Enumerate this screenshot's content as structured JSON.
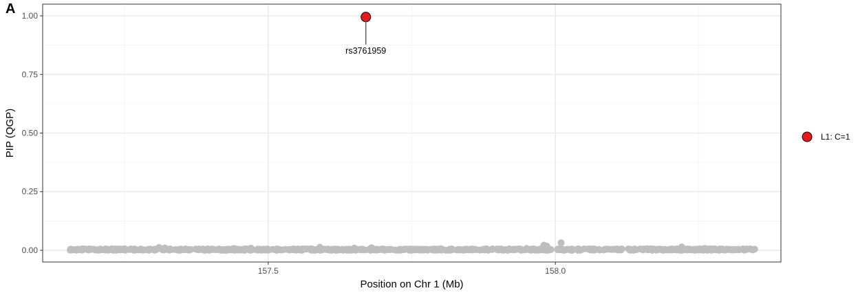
{
  "panel_label": "A",
  "chart_data": {
    "type": "scatter",
    "xlabel": "Position on Chr 1 (Mb)",
    "ylabel": "PIP (QGP)",
    "xlim": [
      157.1073,
      158.3927
    ],
    "ylim": [
      -0.05,
      1.05
    ],
    "x_ticks": [
      157.5,
      158.0
    ],
    "x_tick_labels": [
      "157.5",
      "158.0"
    ],
    "y_ticks": [
      0.0,
      0.25,
      0.5,
      0.75,
      1.0
    ],
    "y_tick_labels": [
      "0.00",
      "0.25",
      "0.50",
      "0.75",
      "1.00"
    ],
    "x_minor_ticks": [
      157.25,
      157.75,
      158.25
    ],
    "y_minor_ticks": [
      0.125,
      0.375,
      0.625,
      0.875
    ],
    "grid": true,
    "legend_position": "right",
    "series": [
      {
        "name": "L1: C=1",
        "color": "#e41a1c",
        "points": [
          {
            "x": 157.67,
            "y": 0.995
          }
        ]
      },
      {
        "color": "#bebebe",
        "points": [
          {
            "x": 157.16,
            "y": 0.002
          },
          {
            "x": 157.19,
            "y": 0.003
          },
          {
            "x": 157.22,
            "y": 0.002
          },
          {
            "x": 157.25,
            "y": 0.006
          },
          {
            "x": 157.28,
            "y": 0.001
          },
          {
            "x": 157.31,
            "y": 0.012
          },
          {
            "x": 157.32,
            "y": 0.01
          },
          {
            "x": 157.35,
            "y": 0.003
          },
          {
            "x": 157.38,
            "y": 0.004
          },
          {
            "x": 157.41,
            "y": 0.002
          },
          {
            "x": 157.44,
            "y": 0.008
          },
          {
            "x": 157.47,
            "y": 0.009
          },
          {
            "x": 157.5,
            "y": 0.003
          },
          {
            "x": 157.53,
            "y": 0.004
          },
          {
            "x": 157.56,
            "y": 0.006
          },
          {
            "x": 157.59,
            "y": 0.013
          },
          {
            "x": 157.62,
            "y": 0.003
          },
          {
            "x": 157.65,
            "y": 0.009
          },
          {
            "x": 157.68,
            "y": 0.011
          },
          {
            "x": 157.71,
            "y": 0.002
          },
          {
            "x": 157.74,
            "y": 0.005
          },
          {
            "x": 157.77,
            "y": 0.004
          },
          {
            "x": 157.8,
            "y": 0.007
          },
          {
            "x": 157.83,
            "y": 0.002
          },
          {
            "x": 157.86,
            "y": 0.004
          },
          {
            "x": 157.89,
            "y": 0.003
          },
          {
            "x": 157.92,
            "y": 0.006
          },
          {
            "x": 157.95,
            "y": 0.008
          },
          {
            "x": 157.98,
            "y": 0.022
          },
          {
            "x": 157.985,
            "y": 0.018
          },
          {
            "x": 158.01,
            "y": 0.032
          },
          {
            "x": 158.04,
            "y": 0.006
          },
          {
            "x": 158.07,
            "y": 0.003
          },
          {
            "x": 158.1,
            "y": 0.004
          },
          {
            "x": 158.13,
            "y": 0.003
          },
          {
            "x": 158.16,
            "y": 0.007
          },
          {
            "x": 158.19,
            "y": 0.004
          },
          {
            "x": 158.22,
            "y": 0.014
          },
          {
            "x": 158.25,
            "y": 0.003
          },
          {
            "x": 158.26,
            "y": 0.008
          },
          {
            "x": 158.29,
            "y": 0.003
          },
          {
            "x": 158.32,
            "y": 0.002
          },
          {
            "x": 158.34,
            "y": 0.004
          }
        ]
      }
    ],
    "annotations": [
      {
        "text": "rs3761959",
        "x": 157.67,
        "y": 0.995
      }
    ]
  }
}
